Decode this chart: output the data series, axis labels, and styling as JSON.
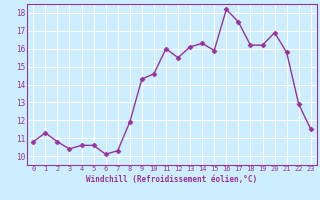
{
  "x": [
    0,
    1,
    2,
    3,
    4,
    5,
    6,
    7,
    8,
    9,
    10,
    11,
    12,
    13,
    14,
    15,
    16,
    17,
    18,
    19,
    20,
    21,
    22,
    23
  ],
  "y": [
    10.8,
    11.3,
    10.8,
    10.4,
    10.6,
    10.6,
    10.1,
    10.3,
    11.9,
    14.3,
    14.6,
    16.0,
    15.5,
    16.1,
    16.3,
    15.9,
    18.2,
    17.5,
    16.2,
    16.2,
    16.9,
    15.8,
    12.9,
    11.5
  ],
  "line_color": "#993399",
  "marker": "D",
  "marker_size": 2.5,
  "xlabel": "Windchill (Refroidissement éolien,°C)",
  "xlim": [
    -0.5,
    23.5
  ],
  "ylim": [
    9.5,
    18.5
  ],
  "yticks": [
    10,
    11,
    12,
    13,
    14,
    15,
    16,
    17,
    18
  ],
  "xticks": [
    0,
    1,
    2,
    3,
    4,
    5,
    6,
    7,
    8,
    9,
    10,
    11,
    12,
    13,
    14,
    15,
    16,
    17,
    18,
    19,
    20,
    21,
    22,
    23
  ],
  "bg_color": "#cceeff",
  "grid_color": "#ffffff",
  "tick_color": "#993399",
  "label_color": "#993399",
  "font_family": "monospace",
  "spine_color": "#993399"
}
